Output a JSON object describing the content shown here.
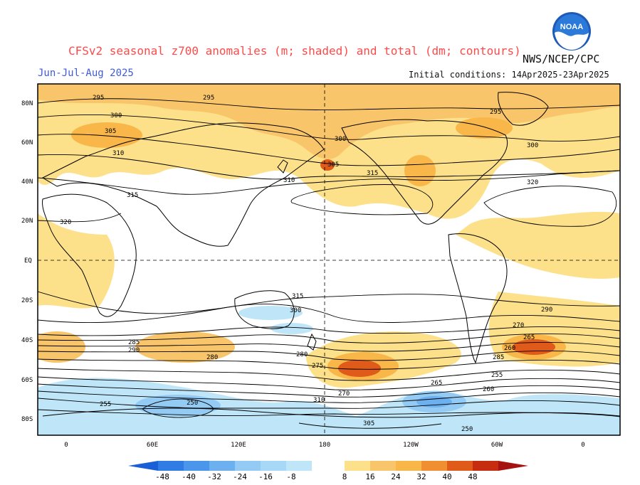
{
  "title": "CFSv2 seasonal z700 anomalies (m; shaded) and total (dm; contours)",
  "subtitle": "Jun-Jul-Aug 2025",
  "agency": "NWS/NCEP/CPC",
  "initial_conditions": "Initial conditions: 14Apr2025-23Apr2025",
  "logo": {
    "text": "NOAA",
    "icon": "noaa-logo"
  },
  "lat_labels": [
    "80N",
    "60N",
    "40N",
    "20N",
    "EQ",
    "20S",
    "40S",
    "60S",
    "80S"
  ],
  "lon_labels": [
    "0",
    "60E",
    "120E",
    "180",
    "120W",
    "60W",
    "0"
  ],
  "colorbar": {
    "labels": [
      "-48",
      "-40",
      "-32",
      "-24",
      "-16",
      "-8",
      "8",
      "16",
      "24",
      "32",
      "40",
      "48"
    ],
    "colors": [
      "#1a5fd6",
      "#2f7de4",
      "#4a96ea",
      "#6cb0f0",
      "#94cbf5",
      "#bfe6f8",
      "#ffffff",
      "#fde08a",
      "#f9b74a",
      "#f08f30",
      "#e05a1a",
      "#c62c10",
      "#a51210"
    ]
  },
  "contour_labels": [
    "295",
    "300",
    "305",
    "310",
    "315",
    "320",
    "300",
    "305",
    "310",
    "315",
    "320",
    "300",
    "295",
    "295",
    "290",
    "285",
    "280",
    "275",
    "270",
    "265",
    "260",
    "255",
    "250",
    "310",
    "305",
    "315",
    "300",
    "290",
    "285",
    "280",
    "270",
    "265",
    "260",
    "255",
    "250"
  ],
  "colors": {
    "land_outline": "#000000",
    "title": "#ff4a4a",
    "subtitle": "#3f5bd6"
  }
}
